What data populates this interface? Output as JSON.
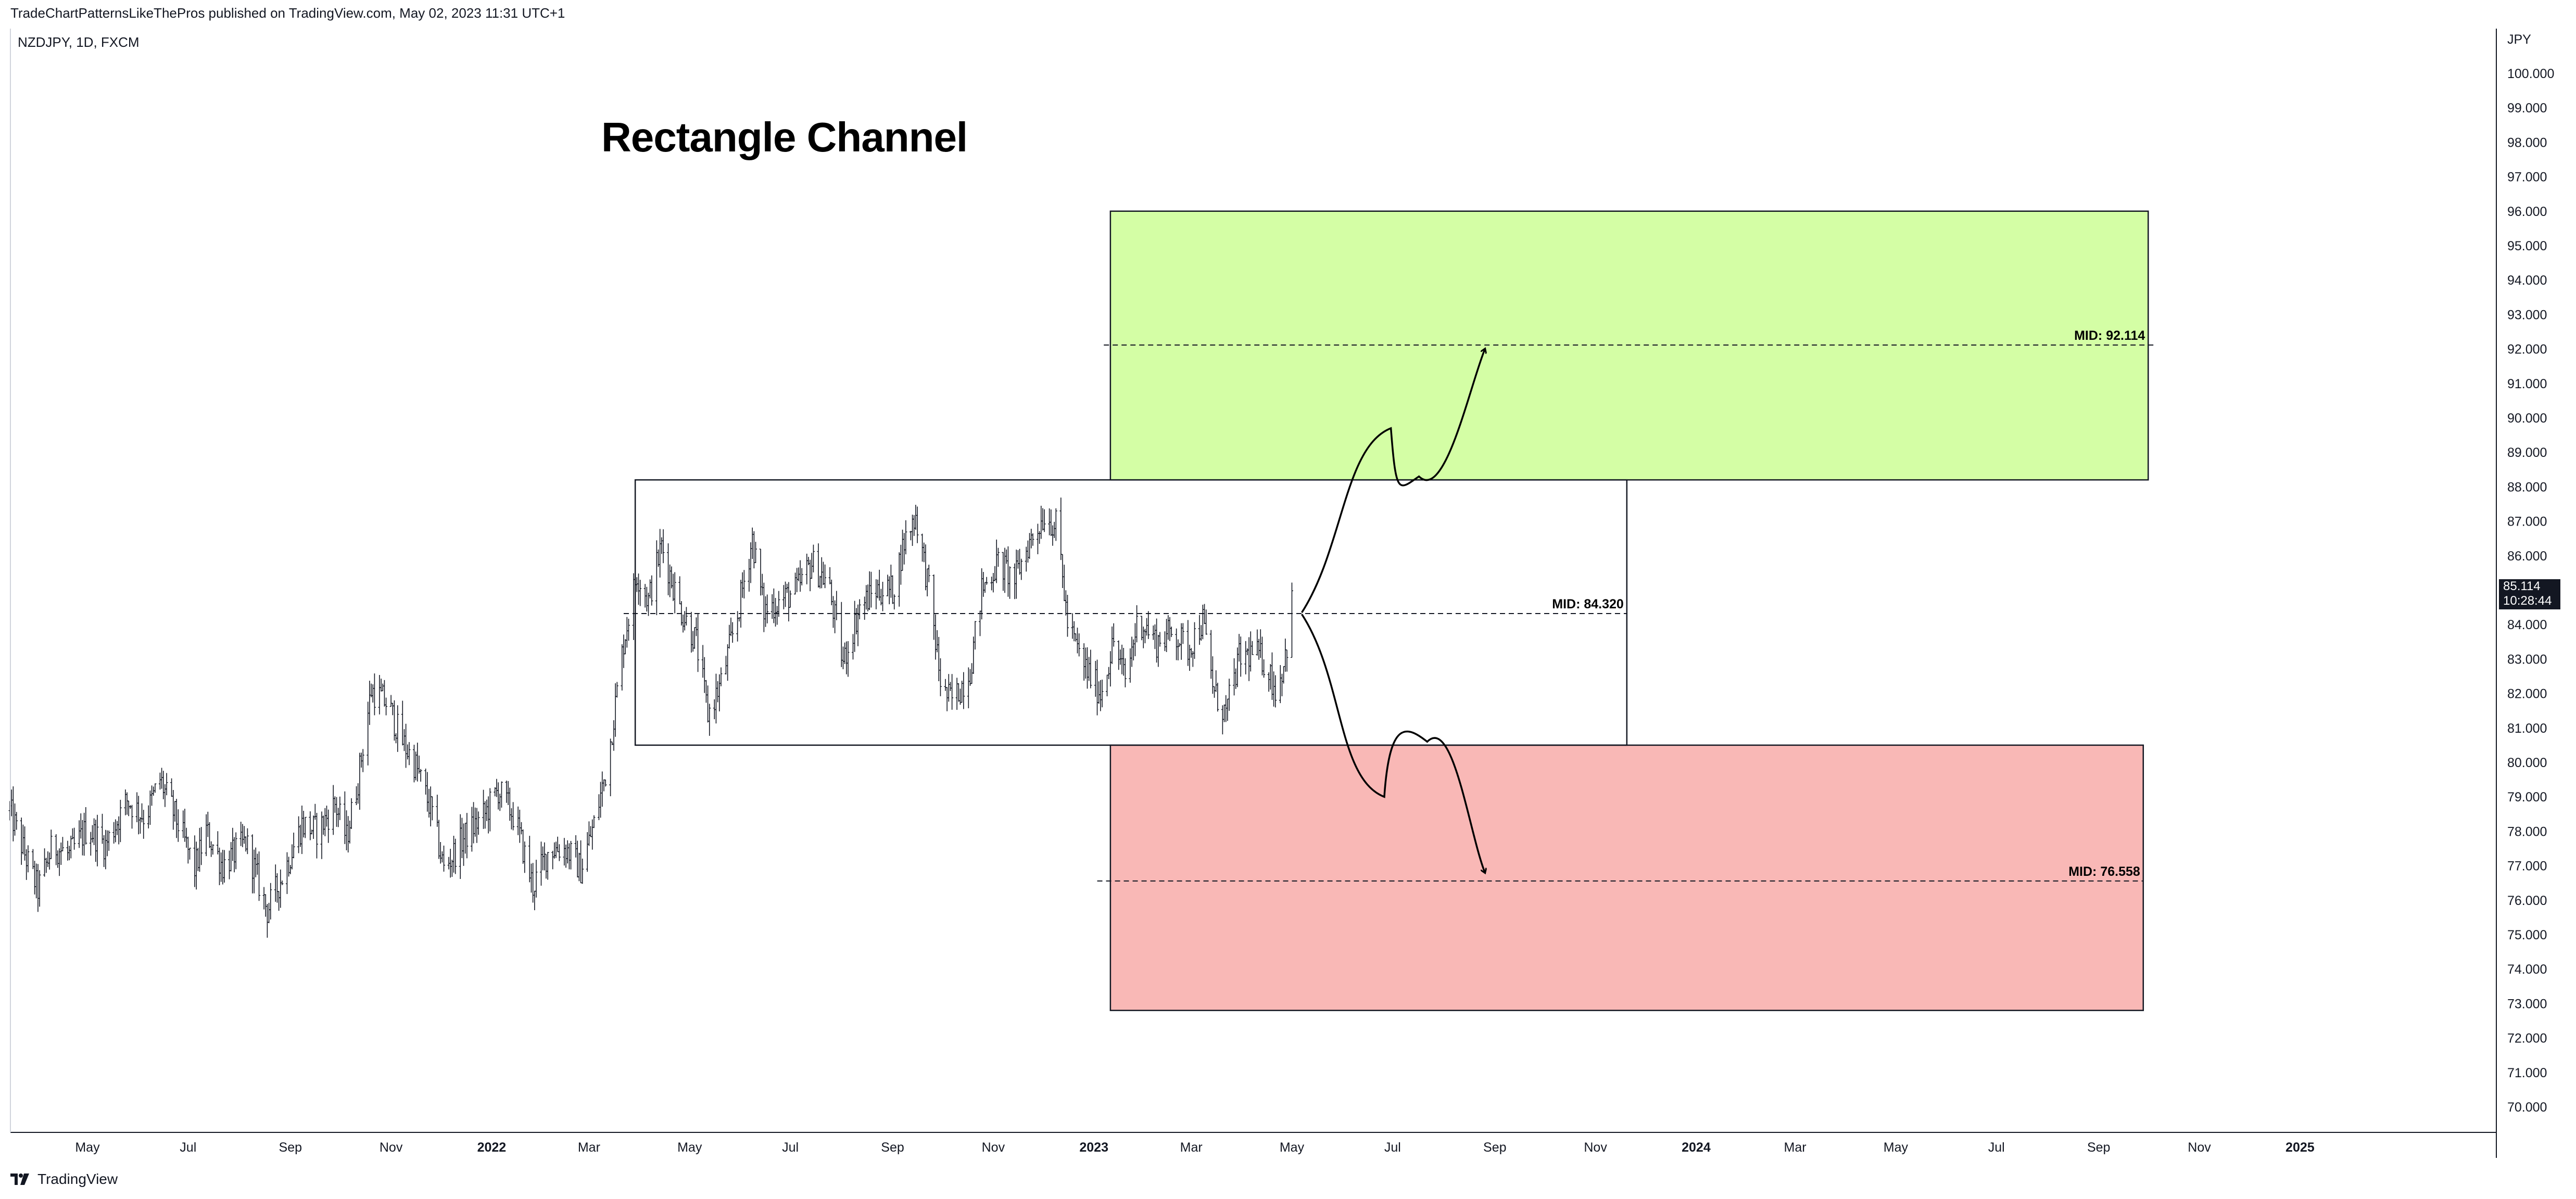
{
  "header": {
    "published": "TradeChartPatternsLikeThePros published on TradingView.com, May 02, 2023 11:31 UTC+1"
  },
  "symbol": {
    "label": "NZDJPY, 1D, FXCM"
  },
  "footer": {
    "brand": "TradingView"
  },
  "last_price": {
    "value": "85.114",
    "countdown": "10:28:44"
  },
  "chart_data": {
    "type": "bar",
    "title": "Rectangle Channel",
    "currency_label": "JPY",
    "y_ticks": [
      "70.000",
      "71.000",
      "72.000",
      "73.000",
      "74.000",
      "75.000",
      "76.000",
      "77.000",
      "78.000",
      "79.000",
      "80.000",
      "81.000",
      "82.000",
      "83.000",
      "84.000",
      "85.000",
      "86.000",
      "87.000",
      "88.000",
      "89.000",
      "90.000",
      "91.000",
      "92.000",
      "93.000",
      "94.000",
      "95.000",
      "96.000",
      "97.000",
      "98.000",
      "99.000",
      "100.000"
    ],
    "x_ticks": [
      {
        "label": "May",
        "date": "2021-05-01",
        "bold": false
      },
      {
        "label": "Jul",
        "date": "2021-07-01",
        "bold": false
      },
      {
        "label": "Sep",
        "date": "2021-09-01",
        "bold": false
      },
      {
        "label": "Nov",
        "date": "2021-11-01",
        "bold": false
      },
      {
        "label": "2022",
        "date": "2022-01-01",
        "bold": true
      },
      {
        "label": "Mar",
        "date": "2022-03-01",
        "bold": false
      },
      {
        "label": "May",
        "date": "2022-05-01",
        "bold": false
      },
      {
        "label": "Jul",
        "date": "2022-07-01",
        "bold": false
      },
      {
        "label": "Sep",
        "date": "2022-09-01",
        "bold": false
      },
      {
        "label": "Nov",
        "date": "2022-11-01",
        "bold": false
      },
      {
        "label": "2023",
        "date": "2023-01-01",
        "bold": true
      },
      {
        "label": "Mar",
        "date": "2023-03-01",
        "bold": false
      },
      {
        "label": "May",
        "date": "2023-05-01",
        "bold": false
      },
      {
        "label": "Jul",
        "date": "2023-07-01",
        "bold": false
      },
      {
        "label": "Sep",
        "date": "2023-09-01",
        "bold": false
      },
      {
        "label": "Nov",
        "date": "2023-11-01",
        "bold": false
      },
      {
        "label": "2024",
        "date": "2024-01-01",
        "bold": true
      },
      {
        "label": "Mar",
        "date": "2024-03-01",
        "bold": false
      },
      {
        "label": "May",
        "date": "2024-05-01",
        "bold": false
      },
      {
        "label": "Jul",
        "date": "2024-07-01",
        "bold": false
      },
      {
        "label": "Sep",
        "date": "2024-09-01",
        "bold": false
      },
      {
        "label": "Nov",
        "date": "2024-11-01",
        "bold": false
      },
      {
        "label": "2025",
        "date": "2025-01-01",
        "bold": true
      }
    ],
    "price_path": [
      {
        "date": "2021-03-15",
        "price": 78.6
      },
      {
        "date": "2021-03-25",
        "price": 77.2
      },
      {
        "date": "2021-04-01",
        "price": 76.3
      },
      {
        "date": "2021-04-10",
        "price": 77.6
      },
      {
        "date": "2021-04-20",
        "price": 77.3
      },
      {
        "date": "2021-05-01",
        "price": 78.1
      },
      {
        "date": "2021-05-12",
        "price": 77.6
      },
      {
        "date": "2021-05-25",
        "price": 78.9
      },
      {
        "date": "2021-06-05",
        "price": 78.4
      },
      {
        "date": "2021-06-14",
        "price": 79.5
      },
      {
        "date": "2021-06-25",
        "price": 78.2
      },
      {
        "date": "2021-07-05",
        "price": 76.9
      },
      {
        "date": "2021-07-12",
        "price": 78.0
      },
      {
        "date": "2021-07-22",
        "price": 77.0
      },
      {
        "date": "2021-08-05",
        "price": 77.7
      },
      {
        "date": "2021-08-18",
        "price": 75.7
      },
      {
        "date": "2021-08-28",
        "price": 76.8
      },
      {
        "date": "2021-09-08",
        "price": 78.2
      },
      {
        "date": "2021-09-18",
        "price": 78.0
      },
      {
        "date": "2021-09-28",
        "price": 78.8
      },
      {
        "date": "2021-10-05",
        "price": 77.8
      },
      {
        "date": "2021-10-12",
        "price": 79.5
      },
      {
        "date": "2021-10-20",
        "price": 82.1
      },
      {
        "date": "2021-10-30",
        "price": 81.7
      },
      {
        "date": "2021-11-08",
        "price": 80.6
      },
      {
        "date": "2021-11-16",
        "price": 79.9
      },
      {
        "date": "2021-11-26",
        "price": 78.5
      },
      {
        "date": "2021-12-03",
        "price": 76.9
      },
      {
        "date": "2021-12-15",
        "price": 77.8
      },
      {
        "date": "2021-12-28",
        "price": 78.5
      },
      {
        "date": "2022-01-05",
        "price": 79.2
      },
      {
        "date": "2022-01-15",
        "price": 78.4
      },
      {
        "date": "2022-01-26",
        "price": 76.4
      },
      {
        "date": "2022-02-05",
        "price": 77.5
      },
      {
        "date": "2022-02-15",
        "price": 77.5
      },
      {
        "date": "2022-02-24",
        "price": 76.9
      },
      {
        "date": "2022-03-04",
        "price": 78.2
      },
      {
        "date": "2022-03-12",
        "price": 79.9
      },
      {
        "date": "2022-03-22",
        "price": 83.5
      },
      {
        "date": "2022-03-30",
        "price": 85.5
      },
      {
        "date": "2022-04-06",
        "price": 84.7
      },
      {
        "date": "2022-04-14",
        "price": 86.3
      },
      {
        "date": "2022-04-25",
        "price": 84.5
      },
      {
        "date": "2022-05-05",
        "price": 83.5
      },
      {
        "date": "2022-05-12",
        "price": 81.4
      },
      {
        "date": "2022-05-20",
        "price": 82.3
      },
      {
        "date": "2022-05-30",
        "price": 84.3
      },
      {
        "date": "2022-06-08",
        "price": 86.5
      },
      {
        "date": "2022-06-15",
        "price": 84.4
      },
      {
        "date": "2022-06-25",
        "price": 84.7
      },
      {
        "date": "2022-07-05",
        "price": 85.0
      },
      {
        "date": "2022-07-14",
        "price": 85.8
      },
      {
        "date": "2022-07-24",
        "price": 85.2
      },
      {
        "date": "2022-08-02",
        "price": 82.9
      },
      {
        "date": "2022-08-12",
        "price": 84.5
      },
      {
        "date": "2022-08-22",
        "price": 85.0
      },
      {
        "date": "2022-09-01",
        "price": 85.0
      },
      {
        "date": "2022-09-08",
        "price": 86.4
      },
      {
        "date": "2022-09-15",
        "price": 87.2
      },
      {
        "date": "2022-09-23",
        "price": 85.0
      },
      {
        "date": "2022-10-01",
        "price": 82.0
      },
      {
        "date": "2022-10-08",
        "price": 81.8
      },
      {
        "date": "2022-10-18",
        "price": 82.7
      },
      {
        "date": "2022-10-25",
        "price": 85.0
      },
      {
        "date": "2022-11-04",
        "price": 85.8
      },
      {
        "date": "2022-11-14",
        "price": 85.3
      },
      {
        "date": "2022-11-22",
        "price": 86.3
      },
      {
        "date": "2022-12-02",
        "price": 87.2
      },
      {
        "date": "2022-12-10",
        "price": 86.8
      },
      {
        "date": "2022-12-16",
        "price": 84.0
      },
      {
        "date": "2022-12-25",
        "price": 82.9
      },
      {
        "date": "2023-01-05",
        "price": 82.0
      },
      {
        "date": "2023-01-13",
        "price": 83.5
      },
      {
        "date": "2023-01-20",
        "price": 82.4
      },
      {
        "date": "2023-01-28",
        "price": 84.2
      },
      {
        "date": "2023-02-08",
        "price": 83.5
      },
      {
        "date": "2023-02-18",
        "price": 83.8
      },
      {
        "date": "2023-02-27",
        "price": 83.3
      },
      {
        "date": "2023-03-08",
        "price": 84.1
      },
      {
        "date": "2023-03-15",
        "price": 82.0
      },
      {
        "date": "2023-03-22",
        "price": 81.4
      },
      {
        "date": "2023-03-30",
        "price": 83.0
      },
      {
        "date": "2023-04-08",
        "price": 83.2
      },
      {
        "date": "2023-04-15",
        "price": 82.9
      },
      {
        "date": "2023-04-22",
        "price": 82.0
      },
      {
        "date": "2023-04-28",
        "price": 83.4
      },
      {
        "date": "2023-05-02",
        "price": 85.1
      }
    ],
    "annotations": {
      "channel": {
        "start": "2022-03-29",
        "end": "2023-11-20",
        "top": 88.2,
        "bottom": 80.5,
        "mid": 84.32,
        "mid_start": "2022-03-22",
        "mid_label": "MID: 84.320"
      },
      "target_up": {
        "start": "2023-01-11",
        "end": "2024-10-01",
        "top": 96.0,
        "bottom": 88.2,
        "mid": 92.114,
        "mid_start": "2023-01-07",
        "mid_end": "2024-10-05",
        "mid_label": "MID: 92.114",
        "fill": "#d4fea5"
      },
      "target_down": {
        "start": "2023-01-11",
        "end": "2024-09-28",
        "top": 80.5,
        "bottom": 72.8,
        "mid": 76.558,
        "mid_start": "2023-01-03",
        "mid_end": "2024-09-28",
        "mid_label": "MID: 76.558",
        "fill": "#f9b8b6"
      },
      "arrow_up": [
        {
          "date": "2023-05-07",
          "price": 84.35
        },
        {
          "date": "2023-06-30",
          "price": 89.7
        },
        {
          "date": "2023-07-17",
          "price": 88.3
        },
        {
          "date": "2023-08-26",
          "price": 92.0
        }
      ],
      "arrow_down": [
        {
          "date": "2023-05-07",
          "price": 84.3
        },
        {
          "date": "2023-06-26",
          "price": 79.0
        },
        {
          "date": "2023-07-22",
          "price": 80.6
        },
        {
          "date": "2023-08-26",
          "price": 76.8
        }
      ]
    },
    "ylim": [
      69.3,
      101.0
    ],
    "xlim": [
      "2021-03-09",
      "2025-04-30"
    ],
    "grid": false
  }
}
